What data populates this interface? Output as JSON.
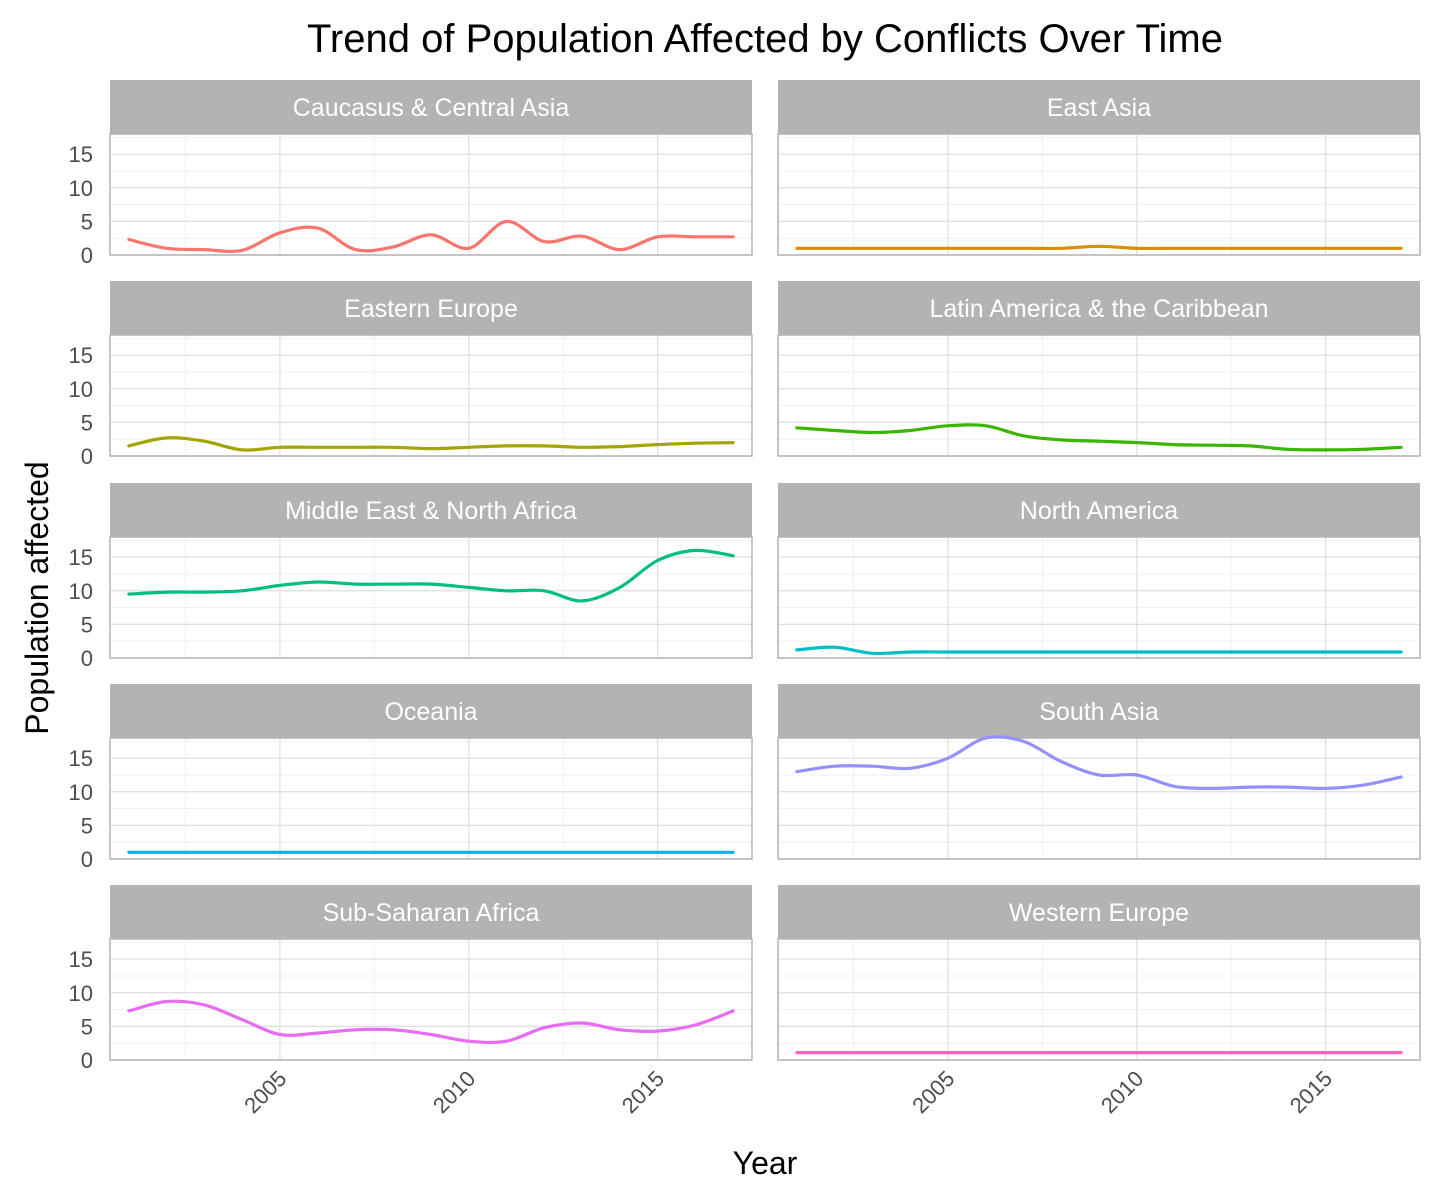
{
  "chart_data": {
    "type": "line",
    "title": "Trend of Population Affected by Conflicts Over Time",
    "xlabel": "Year",
    "ylabel": "Population affected",
    "xlim": [
      2000.5,
      2017.5
    ],
    "ylim": [
      0,
      18
    ],
    "x_ticks": [
      2005,
      2010,
      2015
    ],
    "y_ticks": [
      0,
      5,
      10,
      15
    ],
    "layout": "facet_wrap 5 rows x 2 columns",
    "grid": true,
    "panels": [
      {
        "name": "Caucasus & Central Asia",
        "color": "#F8766D",
        "x": [
          2001,
          2002,
          2003,
          2004,
          2005,
          2006,
          2007,
          2008,
          2009,
          2010,
          2011,
          2012,
          2013,
          2014,
          2015,
          2016,
          2017
        ],
        "y": [
          2.3,
          1.0,
          0.8,
          0.7,
          3.3,
          4.0,
          0.8,
          1.2,
          3.0,
          1.0,
          5.0,
          2.0,
          2.8,
          0.8,
          2.7,
          2.7,
          2.7
        ]
      },
      {
        "name": "East Asia",
        "color": "#D89000",
        "x": [
          2001,
          2002,
          2003,
          2004,
          2005,
          2006,
          2007,
          2008,
          2009,
          2010,
          2011,
          2012,
          2013,
          2014,
          2015,
          2016,
          2017
        ],
        "y": [
          1.0,
          1.0,
          1.0,
          1.0,
          1.0,
          1.0,
          1.0,
          1.0,
          1.3,
          1.0,
          1.0,
          1.0,
          1.0,
          1.0,
          1.0,
          1.0,
          1.0
        ]
      },
      {
        "name": "Eastern Europe",
        "color": "#A3A500",
        "x": [
          2001,
          2002,
          2003,
          2004,
          2005,
          2006,
          2007,
          2008,
          2009,
          2010,
          2011,
          2012,
          2013,
          2014,
          2015,
          2016,
          2017
        ],
        "y": [
          1.5,
          2.7,
          2.2,
          0.9,
          1.3,
          1.3,
          1.3,
          1.3,
          1.1,
          1.3,
          1.5,
          1.5,
          1.3,
          1.4,
          1.7,
          1.9,
          2.0
        ]
      },
      {
        "name": "Latin America & the Caribbean",
        "color": "#39B600",
        "x": [
          2001,
          2002,
          2003,
          2004,
          2005,
          2006,
          2007,
          2008,
          2009,
          2010,
          2011,
          2012,
          2013,
          2014,
          2015,
          2016,
          2017
        ],
        "y": [
          4.2,
          3.8,
          3.5,
          3.8,
          4.5,
          4.5,
          3.0,
          2.4,
          2.2,
          2.0,
          1.7,
          1.6,
          1.5,
          1.0,
          0.9,
          1.0,
          1.3
        ]
      },
      {
        "name": "Middle East & North Africa",
        "color": "#00BF7D",
        "x": [
          2001,
          2002,
          2003,
          2004,
          2005,
          2006,
          2007,
          2008,
          2009,
          2010,
          2011,
          2012,
          2013,
          2014,
          2015,
          2016,
          2017
        ],
        "y": [
          9.5,
          9.8,
          9.8,
          10.0,
          10.8,
          11.3,
          11.0,
          11.0,
          11.0,
          10.5,
          10.0,
          10.0,
          8.5,
          10.5,
          14.5,
          16.0,
          15.2
        ]
      },
      {
        "name": "North America",
        "color": "#00BFC4",
        "x": [
          2001,
          2002,
          2003,
          2004,
          2005,
          2006,
          2007,
          2008,
          2009,
          2010,
          2011,
          2012,
          2013,
          2014,
          2015,
          2016,
          2017
        ],
        "y": [
          1.2,
          1.6,
          0.7,
          0.9,
          0.9,
          0.9,
          0.9,
          0.9,
          0.9,
          0.9,
          0.9,
          0.9,
          0.9,
          0.9,
          0.9,
          0.9,
          0.9
        ]
      },
      {
        "name": "Oceania",
        "color": "#00B0F6",
        "x": [
          2001,
          2002,
          2003,
          2004,
          2005,
          2006,
          2007,
          2008,
          2009,
          2010,
          2011,
          2012,
          2013,
          2014,
          2015,
          2016,
          2017
        ],
        "y": [
          1.0,
          1.0,
          1.0,
          1.0,
          1.0,
          1.0,
          1.0,
          1.0,
          1.0,
          1.0,
          1.0,
          1.0,
          1.0,
          1.0,
          1.0,
          1.0,
          1.0
        ]
      },
      {
        "name": "South Asia",
        "color": "#9590FF",
        "x": [
          2001,
          2002,
          2003,
          2004,
          2005,
          2006,
          2007,
          2008,
          2009,
          2010,
          2011,
          2012,
          2013,
          2014,
          2015,
          2016,
          2017
        ],
        "y": [
          13.0,
          13.8,
          13.8,
          13.5,
          15.0,
          18.0,
          17.5,
          14.5,
          12.5,
          12.5,
          10.8,
          10.5,
          10.7,
          10.7,
          10.5,
          11.0,
          12.2
        ]
      },
      {
        "name": "Sub-Saharan Africa",
        "color": "#E76BF3",
        "x": [
          2001,
          2002,
          2003,
          2004,
          2005,
          2006,
          2007,
          2008,
          2009,
          2010,
          2011,
          2012,
          2013,
          2014,
          2015,
          2016,
          2017
        ],
        "y": [
          7.3,
          8.7,
          8.2,
          6.0,
          3.8,
          4.0,
          4.5,
          4.5,
          3.8,
          2.8,
          2.8,
          4.8,
          5.5,
          4.5,
          4.3,
          5.2,
          7.3
        ]
      },
      {
        "name": "Western Europe",
        "color": "#FF62BC",
        "x": [
          2001,
          2002,
          2003,
          2004,
          2005,
          2006,
          2007,
          2008,
          2009,
          2010,
          2011,
          2012,
          2013,
          2014,
          2015,
          2016,
          2017
        ],
        "y": [
          1.1,
          1.1,
          1.1,
          1.1,
          1.1,
          1.1,
          1.1,
          1.1,
          1.1,
          1.1,
          1.1,
          1.1,
          1.1,
          1.1,
          1.1,
          1.1,
          1.1
        ]
      }
    ]
  }
}
